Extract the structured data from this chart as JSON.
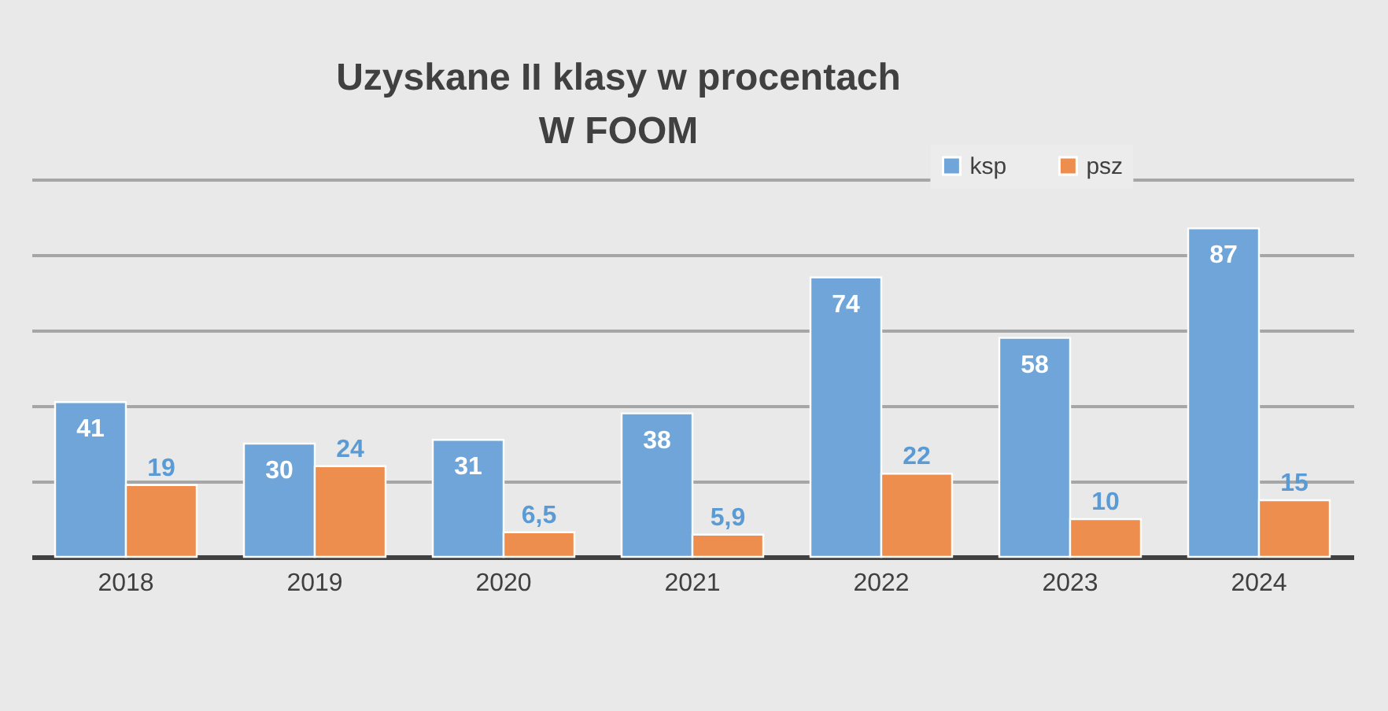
{
  "chart_data": {
    "type": "bar",
    "title": "Uzyskane II klasy w procentach\nW FOOM",
    "categories": [
      "2018",
      "2019",
      "2020",
      "2021",
      "2022",
      "2023",
      "2024"
    ],
    "series": [
      {
        "name": "ksp",
        "color": "#6fa5d8",
        "values": [
          41,
          30,
          31,
          38,
          74,
          58,
          87
        ],
        "value_labels": [
          "41",
          "30",
          "31",
          "38",
          "74",
          "58",
          "87"
        ]
      },
      {
        "name": "psz",
        "color": "#ee8e4e",
        "values": [
          19,
          24,
          6.5,
          5.9,
          22,
          10,
          15
        ],
        "value_labels": [
          "19",
          "24",
          "6,5",
          "5,9",
          "22",
          "10",
          "15"
        ]
      }
    ],
    "grid": "y",
    "legend": "top right",
    "tick_labels": "x"
  }
}
